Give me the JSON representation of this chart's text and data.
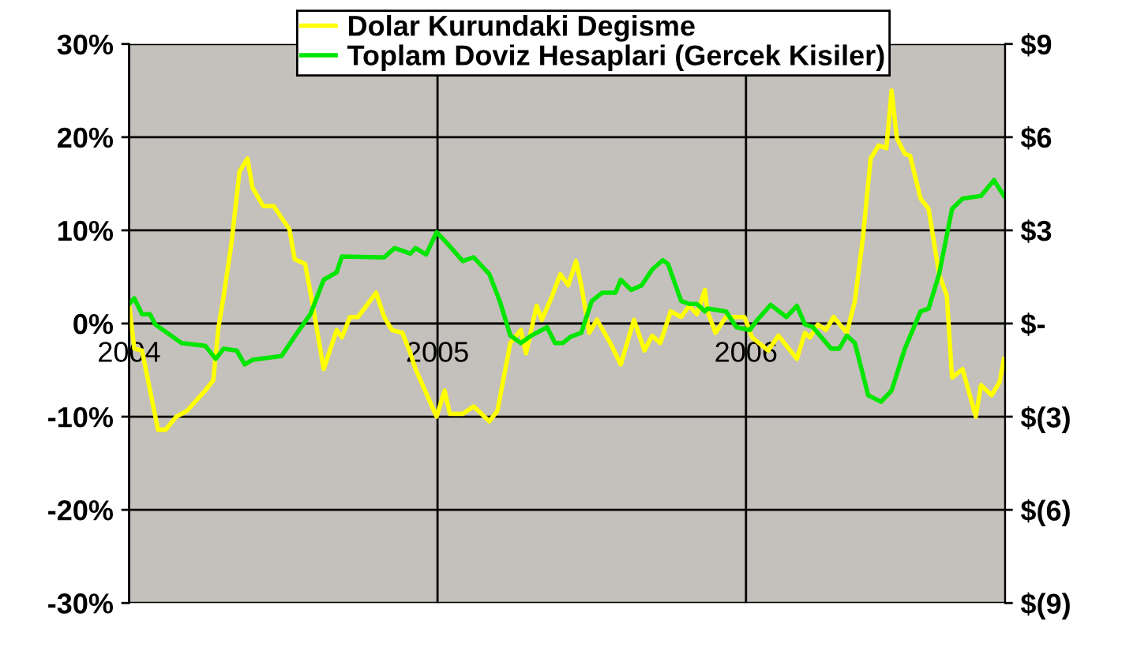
{
  "chart_data": {
    "type": "line",
    "xlim": [
      2004.0,
      2006.84
    ],
    "xticks": [
      2004,
      2005,
      2006
    ],
    "ylim": [
      -30,
      30
    ],
    "yticks": [
      {
        "value": -30,
        "label": "-30%"
      },
      {
        "value": -20,
        "label": "-20%"
      },
      {
        "value": -10,
        "label": "-10%"
      },
      {
        "value": 0,
        "label": "0%"
      },
      {
        "value": 10,
        "label": "10%"
      },
      {
        "value": 20,
        "label": "20%"
      },
      {
        "value": 30,
        "label": "30%"
      }
    ],
    "y2lim": [
      -9,
      9
    ],
    "y2ticks": [
      {
        "value": -9,
        "label": "$(9)"
      },
      {
        "value": -6,
        "label": "$(6)"
      },
      {
        "value": -3,
        "label": "$(3)"
      },
      {
        "value": 0,
        "label": "$-"
      },
      {
        "value": 3,
        "label": "$3"
      },
      {
        "value": 6,
        "label": "$6"
      },
      {
        "value": 9,
        "label": "$9"
      }
    ],
    "grid": true,
    "legend": "top",
    "series": [
      {
        "name": "Dolar Kurundaki Degisme",
        "color": "#ffff00",
        "x": [
          2004.0,
          2004.017,
          2004.042,
          2004.094,
          2004.119,
          2004.153,
          2004.187,
          2004.247,
          2004.273,
          2004.29,
          2004.307,
          2004.332,
          2004.358,
          2004.384,
          2004.4,
          2004.435,
          2004.469,
          2004.52,
          2004.537,
          2004.571,
          2004.596,
          2004.631,
          2004.673,
          2004.69,
          2004.716,
          2004.742,
          2004.801,
          2004.827,
          2004.852,
          2004.886,
          2004.912,
          2004.929,
          2004.997,
          2005.023,
          2005.04,
          2005.082,
          2005.117,
          2005.168,
          2005.194,
          2005.236,
          2005.27,
          2005.287,
          2005.321,
          2005.338,
          2005.372,
          2005.398,
          2005.424,
          2005.449,
          2005.466,
          2005.492,
          2005.517,
          2005.56,
          2005.594,
          2005.637,
          2005.671,
          2005.696,
          2005.722,
          2005.756,
          2005.79,
          2005.816,
          2005.841,
          2005.867,
          2005.875,
          2005.901,
          2005.935,
          2005.995,
          2006.02,
          2006.072,
          2006.105,
          2006.165,
          2006.191,
          2006.208,
          2006.233,
          2006.259,
          2006.284,
          2006.327,
          2006.353,
          2006.379,
          2006.404,
          2006.43,
          2006.455,
          2006.472,
          2006.489,
          2006.515,
          2006.532,
          2006.566,
          2006.592,
          2006.626,
          2006.651,
          2006.668,
          2006.702,
          2006.745,
          2006.762,
          2006.796,
          2006.822,
          2006.836
        ],
        "values": [
          2.1,
          -2.7,
          -2.9,
          -11.4,
          -11.4,
          -10,
          -9.4,
          -7.2,
          -6.1,
          -0.4,
          3.0,
          8.6,
          16.3,
          17.7,
          14.6,
          12.6,
          12.6,
          10.1,
          6.9,
          6.4,
          1.9,
          -4.9,
          -0.7,
          -1.5,
          0.7,
          0.7,
          3.3,
          0.7,
          -0.7,
          -1.0,
          -3.2,
          -4.9,
          -10,
          -7.2,
          -9.7,
          -9.7,
          -8.9,
          -10.5,
          -9.4,
          -2.1,
          -0.7,
          -3.2,
          1.9,
          0.4,
          3.0,
          5.3,
          4.1,
          6.7,
          4.1,
          -1.0,
          0.4,
          -2.1,
          -4.4,
          0.4,
          -2.9,
          -1.3,
          -2.1,
          1.3,
          0.7,
          1.9,
          1.0,
          3.6,
          1.3,
          -1.0,
          0.7,
          0.7,
          -1.5,
          -2.9,
          -1.3,
          -3.8,
          -1.0,
          -1.5,
          -0.1,
          -0.7,
          0.7,
          -1.0,
          2.4,
          9.2,
          17.7,
          19.1,
          18.8,
          25.0,
          19.9,
          18.2,
          18.0,
          13.4,
          12.3,
          5.3,
          3.0,
          -5.8,
          -4.9,
          -10,
          -6.6,
          -7.7,
          -6.3,
          -3.8
        ]
      },
      {
        "name": "Toplam Doviz Hesaplari (Gercek Kisiler)",
        "color": "#00e600",
        "x": [
          2004.0,
          2004.017,
          2004.042,
          2004.068,
          2004.085,
          2004.145,
          2004.17,
          2004.247,
          2004.281,
          2004.307,
          2004.349,
          2004.375,
          2004.4,
          2004.494,
          2004.545,
          2004.588,
          2004.631,
          2004.673,
          2004.69,
          2004.827,
          2004.861,
          2004.912,
          2004.929,
          2004.963,
          2004.997,
          2005.023,
          2005.082,
          2005.117,
          2005.168,
          2005.202,
          2005.236,
          2005.27,
          2005.304,
          2005.355,
          2005.381,
          2005.406,
          2005.432,
          2005.466,
          2005.5,
          2005.534,
          2005.577,
          2005.594,
          2005.628,
          2005.662,
          2005.696,
          2005.73,
          2005.747,
          2005.79,
          2005.816,
          2005.841,
          2005.867,
          2005.875,
          2005.935,
          2005.969,
          2006.012,
          2006.037,
          2006.08,
          2006.131,
          2006.165,
          2006.191,
          2006.217,
          2006.276,
          2006.302,
          2006.327,
          2006.353,
          2006.396,
          2006.438,
          2006.472,
          2006.515,
          2006.566,
          2006.592,
          2006.626,
          2006.668,
          2006.702,
          2006.762,
          2006.804,
          2006.836
        ],
        "values": [
          2.1,
          2.7,
          1.0,
          1.0,
          -0.1,
          -1.5,
          -2.1,
          -2.4,
          -3.8,
          -2.7,
          -2.9,
          -4.4,
          -3.9,
          -3.5,
          -1.0,
          1.0,
          4.7,
          5.5,
          7.2,
          7.1,
          8.1,
          7.5,
          8.1,
          7.4,
          9.8,
          8.9,
          6.7,
          7.1,
          5.3,
          2.4,
          -1.3,
          -2.1,
          -1.3,
          -0.4,
          -2.1,
          -2.1,
          -1.4,
          -1.0,
          2.4,
          3.3,
          3.3,
          4.7,
          3.6,
          4.1,
          5.8,
          6.8,
          6.4,
          2.4,
          2.1,
          2.1,
          1.3,
          1.6,
          1.3,
          -0.4,
          -0.7,
          0.4,
          2.0,
          0.7,
          1.9,
          -0.1,
          -0.4,
          -2.7,
          -2.7,
          -1.3,
          -2.1,
          -7.7,
          -8.4,
          -7.2,
          -2.7,
          1.3,
          1.6,
          5.3,
          12.3,
          13.4,
          13.7,
          15.4,
          13.7
        ]
      }
    ]
  }
}
